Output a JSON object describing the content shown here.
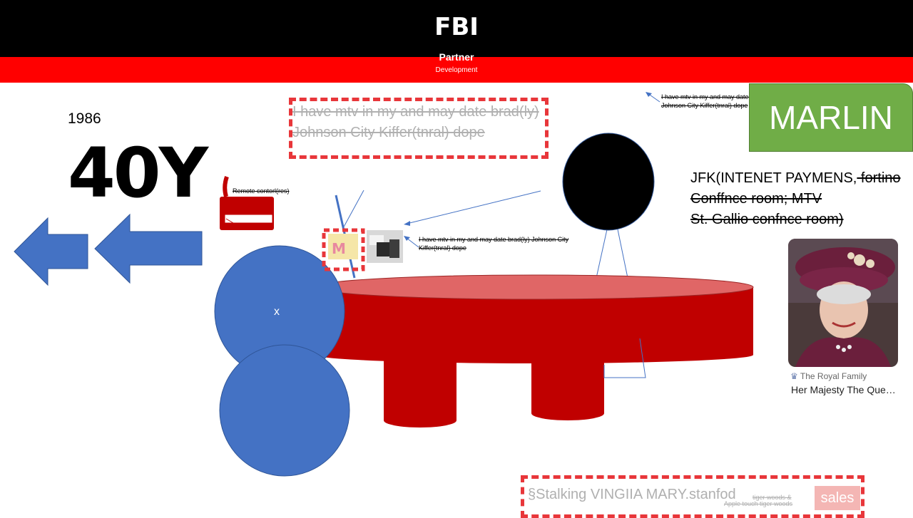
{
  "header": {
    "title": "FBI",
    "subtitle": "Partner",
    "subsubtitle": "Development"
  },
  "left": {
    "year": "1986",
    "big_label": "40Y"
  },
  "notes": {
    "top_box": "I have mtv in my and may date brad(ly) Johnson City Kiffer(tnral) dope",
    "small_top_right": "I have mtv in my and may date brad(ly) Johnson City Kiffer(tnral) dope",
    "small_middle": "I have mtv in my and may date brad(ly) Johnson City Kiffer(tnral) dope",
    "remote_label": "Remote contorl(res)"
  },
  "marlin": {
    "label": "MARLIN"
  },
  "jfk": {
    "line1_plain": "JFK(INTENET PAYMENS,",
    "line1_strike": " fortino",
    "line2": "Conffnce room; MTV",
    "line3": "St. Gallio confnce room)"
  },
  "royal": {
    "source": "The Royal Family",
    "title": "Her Majesty The Que…"
  },
  "circle": {
    "label": "x"
  },
  "bottom": {
    "main": "§Stalking VINGIIA MARY.stanfod",
    "small1": "tiger woods &",
    "small2": "Apple touch tiger woods",
    "sales": "sales"
  },
  "colors": {
    "black": "#000000",
    "red": "#ff0000",
    "blue": "#4472c4",
    "green": "#70ad47",
    "table_top": "#e06666",
    "table_body": "#c00000",
    "dash": "#e8363a"
  }
}
